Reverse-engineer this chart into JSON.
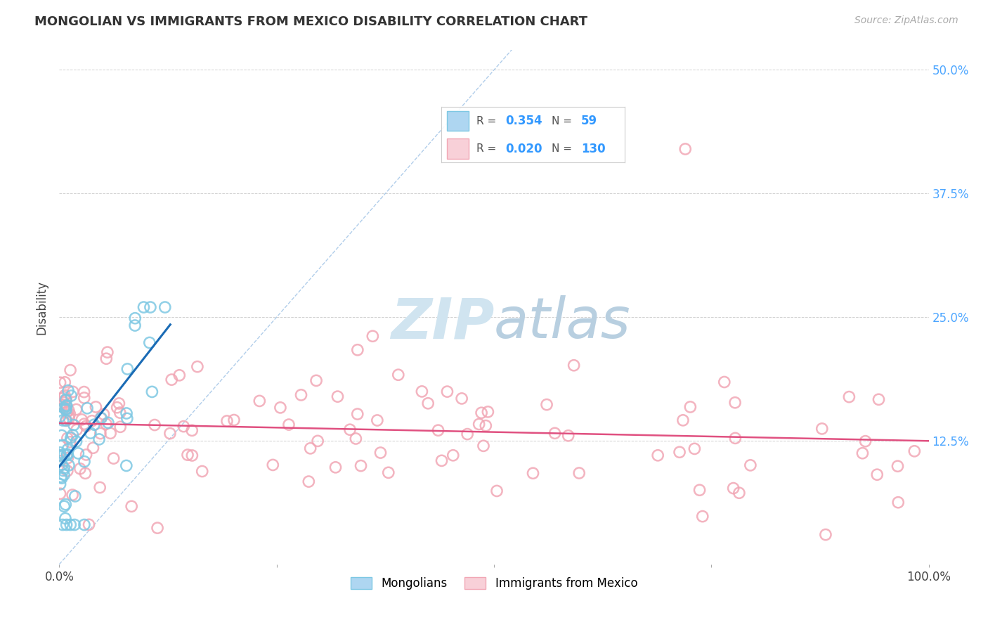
{
  "title": "MONGOLIAN VS IMMIGRANTS FROM MEXICO DISABILITY CORRELATION CHART",
  "source_text": "Source: ZipAtlas.com",
  "ylabel": "Disability",
  "xlim": [
    0,
    1.0
  ],
  "ylim": [
    0,
    0.52
  ],
  "xticks": [
    0.0,
    1.0
  ],
  "xticklabels": [
    "0.0%",
    "100.0%"
  ],
  "yticks": [
    0.125,
    0.25,
    0.375,
    0.5
  ],
  "yticklabels": [
    "12.5%",
    "25.0%",
    "37.5%",
    "50.0%"
  ],
  "color_blue": "#7ec8e3",
  "color_blue_fill": "#aed6f1",
  "color_pink": "#f1a7b5",
  "color_pink_fill": "#f8d0d8",
  "color_blue_line": "#1a6bb5",
  "color_pink_line": "#e05080",
  "color_diag": "#a8c8e8",
  "color_grid": "#d0d0d0",
  "watermark_color": "#d0e4f0",
  "title_color": "#333333",
  "source_color": "#aaaaaa",
  "tick_label_color": "#4da6ff",
  "legend_r1": "0.354",
  "legend_n1": "59",
  "legend_r2": "0.020",
  "legend_n2": "130"
}
